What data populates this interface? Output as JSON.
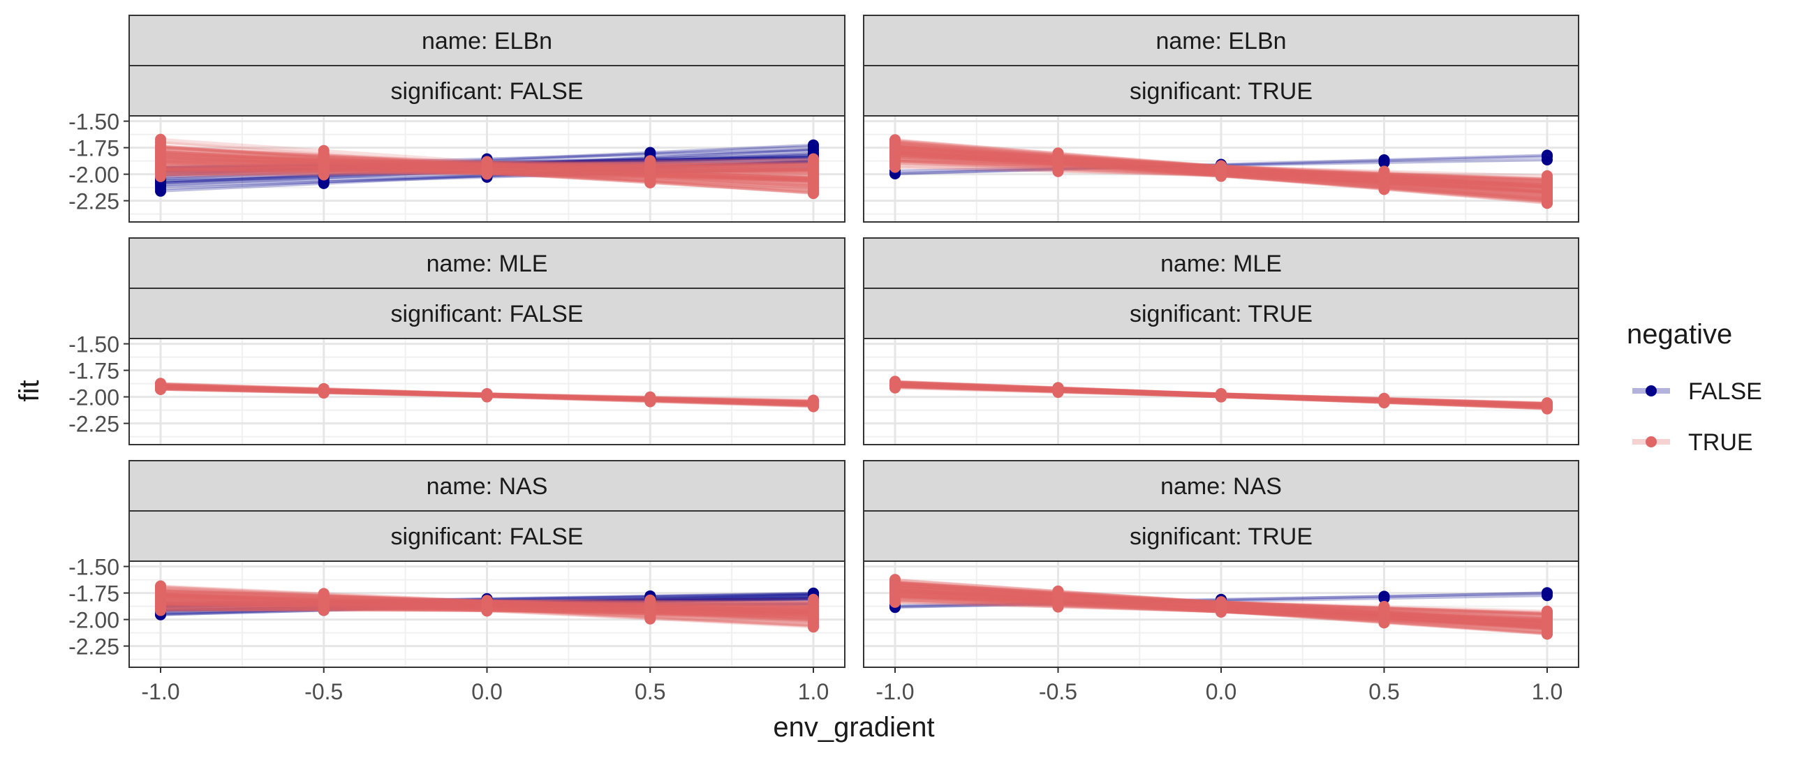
{
  "chart_data": {
    "type": "line",
    "xlabel": "env_gradient",
    "ylabel": "fit",
    "xlim": [
      -1.0,
      1.0
    ],
    "ylim": [
      -2.45,
      -1.45
    ],
    "x_ticks": [
      -1.0,
      -0.5,
      0.0,
      0.5,
      1.0
    ],
    "x_tick_labels": [
      "-1.0",
      "-0.5",
      "0.0",
      "0.5",
      "1.0"
    ],
    "y_ticks": [
      -1.5,
      -1.75,
      -2.0,
      -2.25
    ],
    "y_tick_labels": [
      "-1.50",
      "-1.75",
      "-2.00",
      "-2.25"
    ],
    "grid": true,
    "legend": {
      "title": "negative",
      "position": "right",
      "entries": [
        {
          "label": "FALSE",
          "color": "#00008B"
        },
        {
          "label": "TRUE",
          "color": "#E06666"
        }
      ]
    },
    "facets": [
      {
        "name_label": "name: ELBn",
        "sig_label": "significant: FALSE",
        "row": 0,
        "col": 0,
        "series": [
          {
            "group": "FALSE",
            "color": "#00008B",
            "intercept_range": [
              -2.05,
              -1.85
            ],
            "slope_range": [
              0.02,
              0.16
            ],
            "count": 25
          },
          {
            "group": "TRUE",
            "color": "#E06666",
            "intercept_range": [
              -2.0,
              -1.88
            ],
            "slope_range": [
              -0.22,
              0.05
            ],
            "count": 110
          }
        ]
      },
      {
        "name_label": "name: ELBn",
        "sig_label": "significant: TRUE",
        "row": 0,
        "col": 1,
        "series": [
          {
            "group": "FALSE",
            "color": "#00008B",
            "intercept_range": [
              -1.92,
              -1.9
            ],
            "slope_range": [
              0.05,
              0.09
            ],
            "count": 3
          },
          {
            "group": "TRUE",
            "color": "#E06666",
            "intercept_range": [
              -2.02,
              -1.92
            ],
            "slope_range": [
              -0.27,
              -0.08
            ],
            "count": 110
          }
        ]
      },
      {
        "name_label": "name: MLE",
        "sig_label": "significant: FALSE",
        "row": 1,
        "col": 0,
        "series": [
          {
            "group": "TRUE",
            "color": "#E06666",
            "intercept_range": [
              -2.0,
              -1.97
            ],
            "slope_range": [
              -0.1,
              -0.06
            ],
            "count": 60
          }
        ]
      },
      {
        "name_label": "name: MLE",
        "sig_label": "significant: TRUE",
        "row": 1,
        "col": 1,
        "series": [
          {
            "group": "TRUE",
            "color": "#E06666",
            "intercept_range": [
              -2.0,
              -1.97
            ],
            "slope_range": [
              -0.12,
              -0.08
            ],
            "count": 80
          }
        ]
      },
      {
        "name_label": "name: NAS",
        "sig_label": "significant: FALSE",
        "row": 2,
        "col": 0,
        "series": [
          {
            "group": "FALSE",
            "color": "#00008B",
            "intercept_range": [
              -1.88,
              -1.8
            ],
            "slope_range": [
              0.02,
              0.1
            ],
            "count": 20
          },
          {
            "group": "TRUE",
            "color": "#E06666",
            "intercept_range": [
              -1.92,
              -1.82
            ],
            "slope_range": [
              -0.16,
              0.02
            ],
            "count": 110
          }
        ]
      },
      {
        "name_label": "name: NAS",
        "sig_label": "significant: TRUE",
        "row": 2,
        "col": 1,
        "series": [
          {
            "group": "FALSE",
            "color": "#00008B",
            "intercept_range": [
              -1.83,
              -1.8
            ],
            "slope_range": [
              0.05,
              0.08
            ],
            "count": 3
          },
          {
            "group": "TRUE",
            "color": "#E06666",
            "intercept_range": [
              -1.93,
              -1.83
            ],
            "slope_range": [
              -0.22,
              -0.08
            ],
            "count": 110
          }
        ]
      }
    ]
  }
}
